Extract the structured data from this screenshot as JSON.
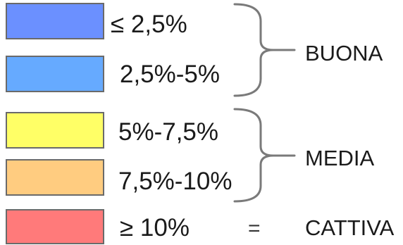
{
  "legend": {
    "items": [
      {
        "color": "#6b90ff",
        "label": "≤ 2,5%"
      },
      {
        "color": "#66aaff",
        "label": "2,5%-5%"
      },
      {
        "color": "#ffff66",
        "label": "5%-7,5%"
      },
      {
        "color": "#ffcc80",
        "label": "7,5%-10%"
      },
      {
        "color": "#ff7a7a",
        "label": "≥ 10%"
      }
    ],
    "groups": [
      {
        "label": "BUONA"
      },
      {
        "label": "MEDIA"
      },
      {
        "label": "CATTIVA"
      }
    ],
    "equals_sign": "="
  }
}
